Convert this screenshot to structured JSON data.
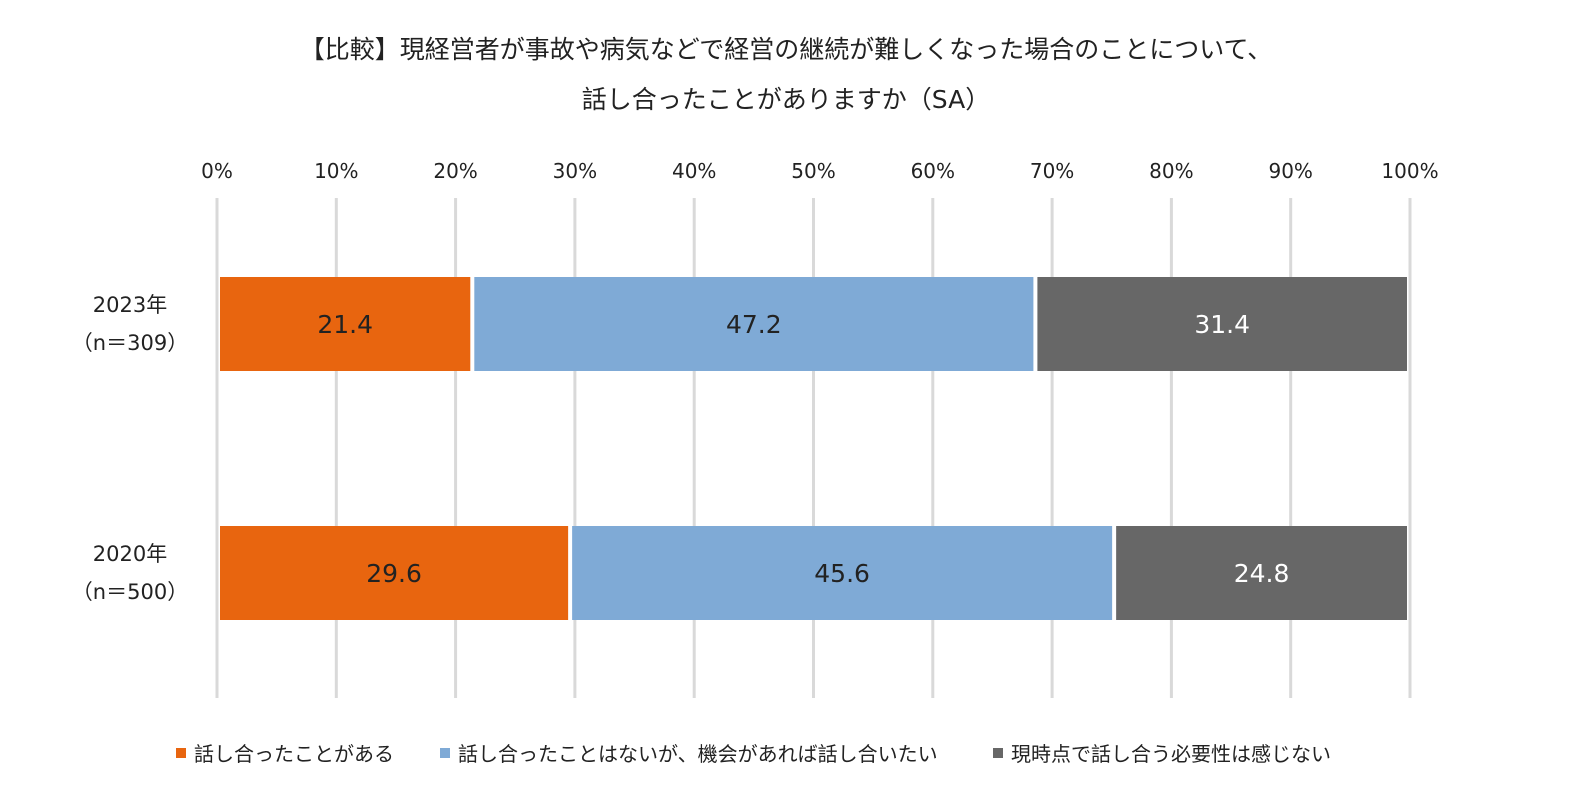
{
  "chart_data": {
    "type": "bar",
    "orientation": "horizontal-stacked-100",
    "title_line1": "【比較】現経営者が事故や病気などで経営の継続が難しくなった場合のことについて、",
    "title_line2": "話し合ったことがありますか（SA）",
    "axis": {
      "min": 0,
      "max": 100,
      "ticks": [
        "0%",
        "10%",
        "20%",
        "30%",
        "40%",
        "50%",
        "60%",
        "70%",
        "80%",
        "90%",
        "100%"
      ],
      "grid": true,
      "position": "top"
    },
    "categories": [
      {
        "label": "2023年",
        "sublabel": "（n＝309）"
      },
      {
        "label": "2020年",
        "sublabel": "（n＝500）"
      }
    ],
    "series": [
      {
        "name": "話し合ったことがある",
        "color": "#E8650F",
        "label_color": "#222222",
        "values": [
          21.4,
          29.6
        ]
      },
      {
        "name": "話し合ったことはないが、機会があれば話し合いたい",
        "color": "#7FAAD6",
        "label_color": "#222222",
        "values": [
          47.2,
          45.6
        ]
      },
      {
        "name": "現時点で話し合う必要性は感じない",
        "color": "#676767",
        "label_color": "#ffffff",
        "values": [
          31.4,
          24.8
        ]
      }
    ],
    "value_labels": [
      [
        "21.4",
        "47.2",
        "31.4"
      ],
      [
        "29.6",
        "45.6",
        "24.8"
      ]
    ],
    "legend_position": "bottom"
  }
}
